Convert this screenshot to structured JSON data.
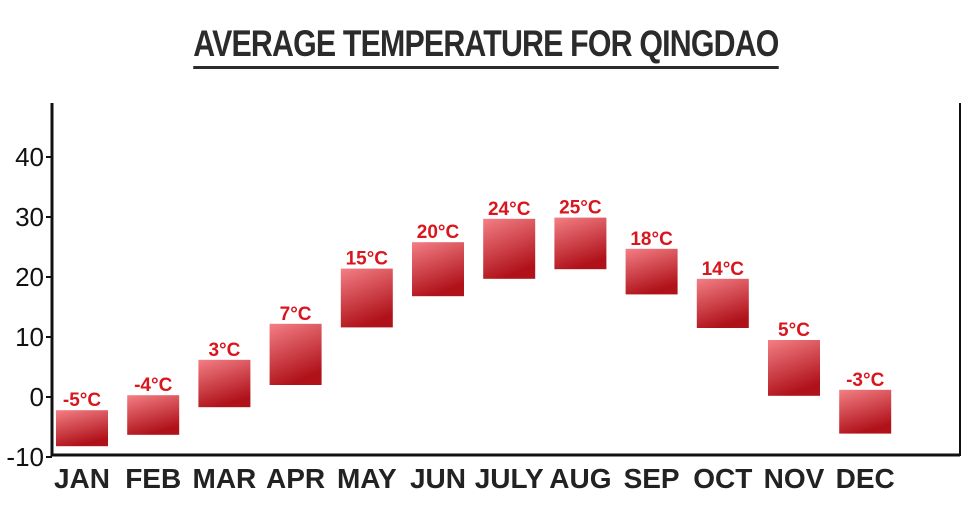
{
  "chart_data": {
    "type": "bar",
    "title": "AVERAGE TEMPERATURE FOR QINGDAO",
    "xlabel": "",
    "ylabel": "",
    "categories": [
      "JAN",
      "FEB",
      "MAR",
      "APR",
      "MAY",
      "JUN",
      "JULY",
      "AUG",
      "SEP",
      "OCT",
      "NOV",
      "DEC"
    ],
    "data_labels": [
      "-5°C",
      "-4°C",
      "3°C",
      "7°C",
      "15°C",
      "20°C",
      "24°C",
      "25°C",
      "18°C",
      "14°C",
      "5°C",
      "-3°C"
    ],
    "series": [
      {
        "values": [
          -5,
          -4,
          3,
          7,
          15,
          20,
          24,
          25,
          18,
          14,
          5,
          -3
        ],
        "ranges": [
          [
            -8.2,
            -2.2
          ],
          [
            -6.3,
            0.3
          ],
          [
            -1.7,
            6.2
          ],
          [
            2.0,
            12.2
          ],
          [
            11.6,
            21.4
          ],
          [
            16.8,
            25.8
          ],
          [
            19.7,
            29.7
          ],
          [
            21.3,
            29.9
          ],
          [
            17.1,
            24.7
          ],
          [
            11.5,
            19.7
          ],
          [
            0.2,
            9.5
          ],
          [
            -6.1,
            1.2
          ]
        ]
      }
    ],
    "ylim": [
      -10,
      40
    ],
    "yticks": [
      -10,
      0,
      10,
      20,
      30,
      40
    ],
    "grid": false,
    "legend": "none",
    "colors": {
      "bar_top": "#f37f85",
      "bar_bottom": "#b0121a",
      "label": "#d9161e",
      "axis": "#111111"
    }
  }
}
